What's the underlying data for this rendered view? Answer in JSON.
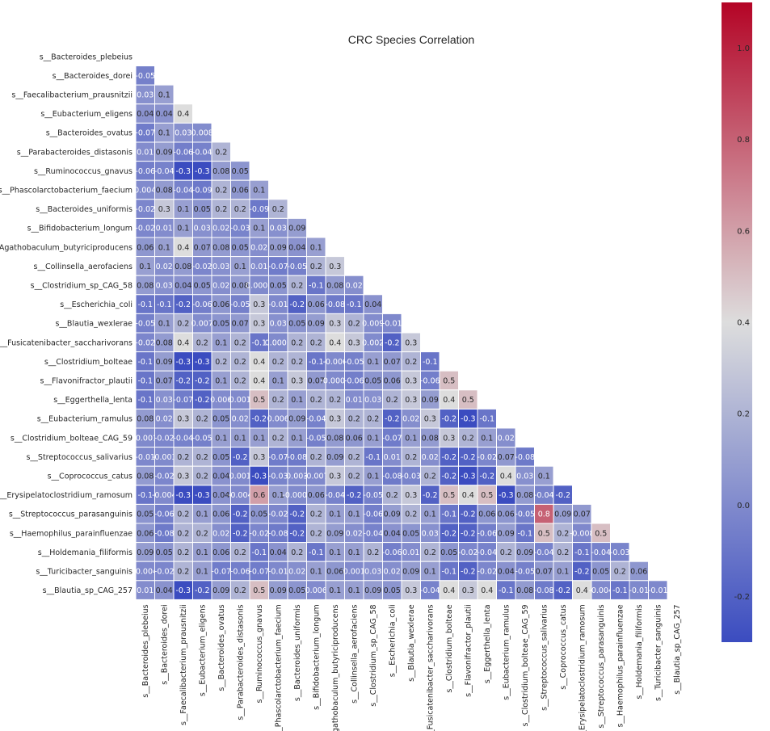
{
  "chart_data": {
    "type": "heatmap",
    "title": "CRC Species Correlation",
    "labels": [
      "s__Bacteroides_plebeius",
      "s__Bacteroides_dorei",
      "s__Faecalibacterium_prausnitzii",
      "s__Eubacterium_eligens",
      "s__Bacteroides_ovatus",
      "s__Parabacteroides_distasonis",
      "s__Ruminococcus_gnavus",
      "s__Phascolarctobacterium_faecium",
      "s__Bacteroides_uniformis",
      "s__Bifidobacterium_longum",
      "s__Agathobaculum_butyriciproducens",
      "s__Collinsella_aerofaciens",
      "s__Clostridium_sp_CAG_58",
      "s__Escherichia_coli",
      "s__Blautia_wexlerae",
      "s__Fusicatenibacter_saccharivorans",
      "s__Clostridium_bolteae",
      "s__Flavonifractor_plautii",
      "s__Eggerthella_lenta",
      "s__Eubacterium_ramulus",
      "s__Clostridium_bolteae_CAG_59",
      "s__Streptococcus_salivarius",
      "s__Coprococcus_catus",
      "s__Erysipelatoclostridium_ramosum",
      "s__Streptococcus_parasanguinis",
      "s__Haemophilus_parainfluenzae",
      "s__Holdemania_filiformis",
      "s__Turicibacter_sanguinis",
      "s__Blautia_sp_CAG_257"
    ],
    "matrix_lower": [
      [],
      [
        "-0.05"
      ],
      [
        "0.03",
        "0.1"
      ],
      [
        "0.04",
        "0.04",
        "0.4"
      ],
      [
        "-0.07",
        "0.1",
        "0.03",
        "0.008"
      ],
      [
        "0.01",
        "0.09",
        "-0.06",
        "-0.04",
        "0.2"
      ],
      [
        "-0.06",
        "-0.04",
        "-0.3",
        "-0.3",
        "0.08",
        "0.05"
      ],
      [
        "0.004",
        "0.08",
        "-0.04",
        "-0.09",
        "0.2",
        "0.06",
        "0.1"
      ],
      [
        "-0.02",
        "0.3",
        "0.1",
        "0.05",
        "0.2",
        "0.2",
        "-0.09",
        "0.2"
      ],
      [
        "-0.02",
        "0.01",
        "0.1",
        "0.03",
        "0.02",
        "-0.03",
        "0.1",
        "0.03",
        "0.09"
      ],
      [
        "0.06",
        "0.1",
        "0.4",
        "0.07",
        "0.08",
        "0.05",
        "0.02",
        "0.09",
        "0.04",
        "0.1"
      ],
      [
        "0.1",
        "0.02",
        "0.08",
        "-0.02",
        "0.03",
        "0.1",
        "0.01",
        "-0.07",
        "-0.05",
        "0.2",
        "0.3"
      ],
      [
        "0.08",
        "0.03",
        "0.04",
        "0.05",
        "0.02",
        "0.08",
        "0.0002",
        "0.05",
        "0.2",
        "-0.1",
        "0.08",
        "0.02"
      ],
      [
        "-0.1",
        "-0.1",
        "-0.2",
        "-0.06",
        "0.06",
        "-0.05",
        "0.3",
        "-0.01",
        "-0.2",
        "0.06",
        "-0.08",
        "-0.1",
        "0.04"
      ],
      [
        "-0.05",
        "0.1",
        "0.2",
        "0.007",
        "0.05",
        "0.07",
        "0.3",
        "0.03",
        "0.05",
        "0.09",
        "0.3",
        "0.2",
        "0.009",
        "-0.01"
      ],
      [
        "-0.02",
        "0.08",
        "0.4",
        "0.2",
        "0.1",
        "0.2",
        "-0.1",
        "0.0003",
        "0.2",
        "0.2",
        "0.4",
        "0.3",
        "0.002",
        "-0.2",
        "0.3"
      ],
      [
        "-0.1",
        "0.09",
        "-0.3",
        "-0.3",
        "0.2",
        "0.2",
        "0.4",
        "0.2",
        "0.2",
        "-0.1",
        "-0.006",
        "-0.05",
        "0.1",
        "0.07",
        "0.2",
        "-0.1"
      ],
      [
        "-0.1",
        "0.07",
        "-0.2",
        "-0.2",
        "0.1",
        "0.2",
        "0.4",
        "0.1",
        "0.3",
        "0.07",
        "-0.0004",
        "-0.06",
        "0.05",
        "0.06",
        "0.3",
        "-0.06",
        "0.5"
      ],
      [
        "-0.1",
        "0.03",
        "-0.07",
        "-0.2",
        "0.006",
        "0.001",
        "0.5",
        "0.2",
        "0.1",
        "0.2",
        "0.2",
        "0.01",
        "0.03",
        "0.2",
        "0.3",
        "0.09",
        "0.4",
        "0.5"
      ],
      [
        "0.08",
        "0.02",
        "0.3",
        "0.2",
        "0.05",
        "0.02",
        "-0.2",
        "0.006",
        "0.09",
        "-0.04",
        "0.3",
        "0.2",
        "0.2",
        "-0.2",
        "0.02",
        "0.3",
        "-0.2",
        "-0.3",
        "-0.1"
      ],
      [
        "-0.001",
        "-0.02",
        "-0.04",
        "-0.05",
        "0.1",
        "0.1",
        "0.1",
        "0.2",
        "0.1",
        "-0.05",
        "0.08",
        "0.06",
        "0.1",
        "-0.07",
        "0.1",
        "0.08",
        "0.3",
        "0.2",
        "0.1",
        "0.02"
      ],
      [
        "-0.01",
        "-0.003",
        "0.2",
        "0.2",
        "0.05",
        "-0.2",
        "0.3",
        "-0.07",
        "-0.08",
        "0.2",
        "0.09",
        "0.2",
        "-0.1",
        "0.01",
        "0.2",
        "0.02",
        "-0.2",
        "-0.2",
        "-0.02",
        "0.07",
        "-0.08"
      ],
      [
        "0.08",
        "-0.02",
        "0.3",
        "0.2",
        "0.04",
        "0.001",
        "-0.3",
        "-0.03",
        "0.003",
        "-0.007",
        "0.3",
        "0.2",
        "0.1",
        "-0.08",
        "-0.03",
        "0.2",
        "-0.2",
        "-0.3",
        "-0.2",
        "0.4",
        "0.03",
        "0.1"
      ],
      [
        "-0.1",
        "-0.004",
        "-0.3",
        "-0.3",
        "0.04",
        "-0.004",
        "0.6",
        "0.1",
        "-0.0007",
        "0.06",
        "-0.04",
        "-0.2",
        "-0.05",
        "0.2",
        "0.3",
        "-0.2",
        "0.5",
        "0.4",
        "0.5",
        "-0.3",
        "0.08",
        "-0.04",
        "-0.2"
      ],
      [
        "0.05",
        "-0.06",
        "0.2",
        "0.1",
        "0.06",
        "-0.2",
        "0.05",
        "-0.02",
        "-0.2",
        "0.2",
        "0.1",
        "0.1",
        "-0.06",
        "0.09",
        "0.2",
        "0.1",
        "-0.1",
        "-0.2",
        "0.06",
        "0.06",
        "-0.05",
        "0.8",
        "0.09",
        "0.07"
      ],
      [
        "0.06",
        "-0.08",
        "0.2",
        "0.2",
        "0.02",
        "-0.2",
        "-0.02",
        "-0.08",
        "-0.2",
        "0.2",
        "0.09",
        "0.02",
        "-0.04",
        "0.04",
        "0.05",
        "0.03",
        "-0.2",
        "-0.2",
        "-0.06",
        "0.09",
        "-0.1",
        "0.5",
        "0.2",
        "-0.008",
        "0.5"
      ],
      [
        "0.09",
        "0.05",
        "0.2",
        "0.1",
        "0.06",
        "0.2",
        "-0.1",
        "0.04",
        "0.2",
        "-0.1",
        "0.1",
        "0.1",
        "0.2",
        "-0.06",
        "0.01",
        "0.2",
        "0.05",
        "-0.02",
        "-0.04",
        "0.2",
        "0.09",
        "-0.04",
        "0.2",
        "-0.1",
        "-0.04",
        "-0.03"
      ],
      [
        "-0.004",
        "-0.02",
        "0.2",
        "0.1",
        "-0.07",
        "-0.06",
        "-0.07",
        "-0.01",
        "0.02",
        "0.1",
        "0.06",
        "0.001",
        "0.03",
        "0.02",
        "0.09",
        "0.1",
        "-0.1",
        "-0.2",
        "-0.02",
        "0.04",
        "-0.05",
        "0.07",
        "0.1",
        "-0.2",
        "0.05",
        "0.2",
        "0.06"
      ],
      [
        "0.01",
        "0.04",
        "-0.3",
        "-0.2",
        "0.09",
        "0.2",
        "0.5",
        "0.09",
        "0.05",
        "0.006",
        "0.1",
        "0.1",
        "0.09",
        "0.05",
        "0.3",
        "-0.04",
        "0.4",
        "0.3",
        "0.4",
        "-0.1",
        "0.08",
        "-0.08",
        "-0.2",
        "0.4",
        "-0.004",
        "-0.1",
        "-0.01",
        "-0.01"
      ]
    ],
    "colorbar": {
      "vmin": -0.3,
      "vmax": 1.1,
      "ticks": [
        "-0.2",
        "0.0",
        "0.2",
        "0.4",
        "0.6",
        "0.8",
        "1.0"
      ],
      "tick_values": [
        -0.2,
        0.0,
        0.2,
        0.4,
        0.6,
        0.8,
        1.0
      ],
      "cmap": "coolwarm",
      "low_color": "#3b4cc0",
      "mid_color": "#dddddd",
      "high_color": "#b40426"
    },
    "xlabel": "",
    "ylabel": ""
  }
}
